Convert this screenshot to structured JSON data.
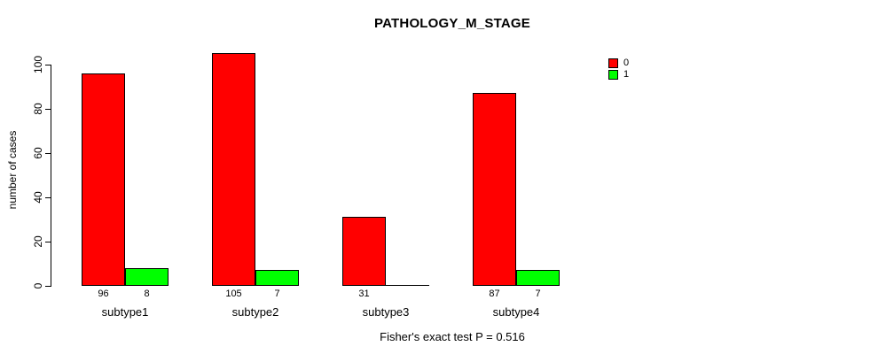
{
  "chart_data": {
    "type": "bar",
    "title": "PATHOLOGY_M_STAGE",
    "ylabel": "number of cases",
    "xlabel": "",
    "categories": [
      "subtype1",
      "subtype2",
      "subtype3",
      "subtype4"
    ],
    "series": [
      {
        "name": "0",
        "color": "#FF0000",
        "values": [
          96,
          105,
          31,
          87
        ]
      },
      {
        "name": "1",
        "color": "#00FF00",
        "values": [
          8,
          7,
          0,
          7
        ]
      }
    ],
    "bar_value_labels": [
      [
        "96",
        "8"
      ],
      [
        "105",
        "7"
      ],
      [
        "31",
        ""
      ],
      [
        "87",
        "7"
      ]
    ],
    "yticks": [
      "0",
      "20",
      "40",
      "60",
      "80",
      "100"
    ],
    "ytick_values": [
      0,
      20,
      40,
      60,
      80,
      100
    ],
    "ylim": [
      0,
      105
    ],
    "grid": false,
    "legend_position": "top-right",
    "footnote": "Fisher's exact test P = 0.516",
    "colors": {
      "background": "#FFFFFF",
      "axis": "#000000",
      "text": "#000000",
      "bar_border": "#000000",
      "series_0": "#FF0000",
      "series_1": "#00FF00"
    }
  }
}
